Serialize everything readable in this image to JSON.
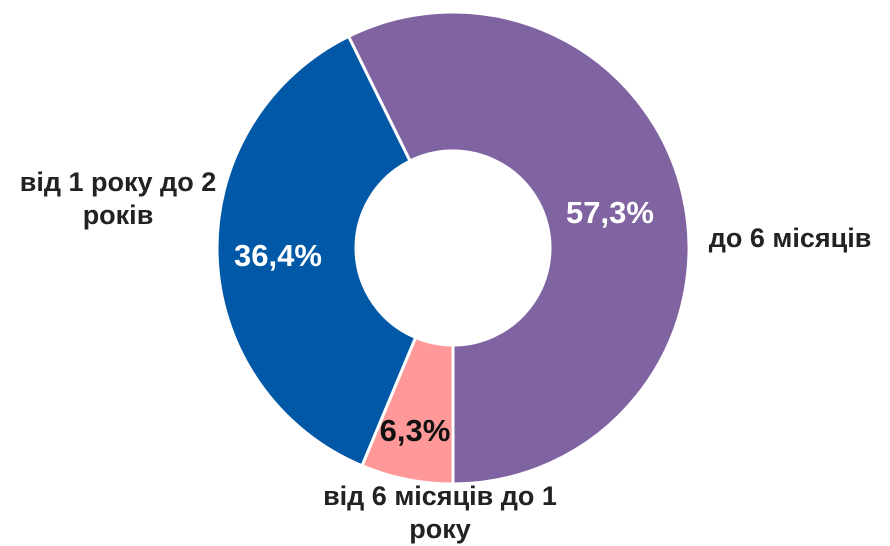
{
  "chart_data": {
    "type": "donut",
    "categories": [
      "до 6 місяців",
      "від 6 місяців до 1 року",
      "від 1 року до 2 років"
    ],
    "values": [
      57.3,
      6.3,
      36.4
    ],
    "value_labels": [
      "57,3%",
      "6,3%",
      "36,4%"
    ],
    "colors": [
      "#8064a2",
      "#ff9999",
      "#0058a6"
    ]
  }
}
